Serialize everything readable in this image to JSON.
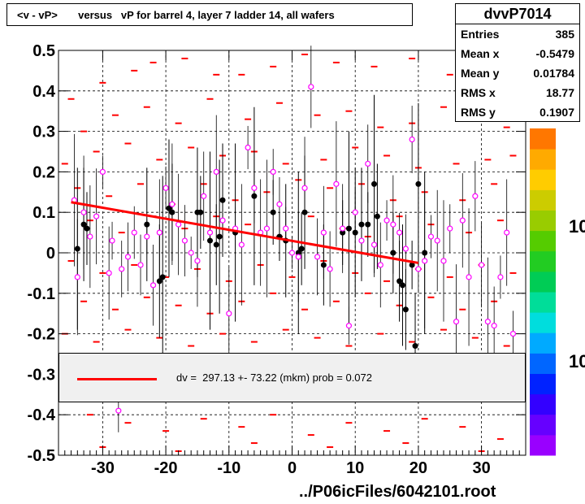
{
  "title": "<v - vP>       versus   vP for barrel 4, layer 7 ladder 14, all wafers",
  "stats": {
    "name": "dvvP7014",
    "rows": [
      {
        "label": "Entries",
        "value": "385"
      },
      {
        "label": "Mean x",
        "value": "-0.5479"
      },
      {
        "label": "Mean y",
        "value": "0.01784"
      },
      {
        "label": "RMS x",
        "value": "18.77"
      },
      {
        "label": "RMS y",
        "value": "0.1907"
      }
    ]
  },
  "legend": {
    "text": "dv =  297.13 +- 73.22 (mkm) prob = 0.072",
    "color": "#ff0000"
  },
  "footer": "../P06icFiles/6042101.root",
  "palette_labels": [
    "10",
    "10"
  ],
  "colors": {
    "profile": "#ff00ff",
    "fit": "#ff0000",
    "hist": "#ff0000",
    "points": "#000000"
  },
  "chart_data": {
    "type": "scatter",
    "xlim": [
      -37,
      37
    ],
    "ylim": [
      -0.5,
      0.5
    ],
    "xticks": [
      -30,
      -20,
      -10,
      0,
      10,
      20,
      30
    ],
    "xticklabels": [
      "-30",
      "-20",
      "-10",
      "0",
      "10",
      "20",
      "30"
    ],
    "yticks": [
      -0.5,
      -0.4,
      -0.3,
      -0.2,
      -0.1,
      0,
      0.1,
      0.2,
      0.3,
      0.4,
      0.5
    ],
    "yticklabels": [
      "-0.5",
      "-0.4",
      "-0.3",
      "-0.2",
      "-0.1",
      "0",
      "0.1",
      "0.2",
      "0.3",
      "0.4",
      "0.5"
    ],
    "grid": true,
    "fit_line": {
      "x": [
        -35,
        20
      ],
      "y": [
        0.125,
        -0.025
      ]
    },
    "profile_magenta": [
      [
        -34.5,
        0.13
      ],
      [
        -34,
        -0.06
      ],
      [
        -33,
        0.1
      ],
      [
        -32,
        0.04
      ],
      [
        -31,
        0.09
      ],
      [
        -30,
        0.2
      ],
      [
        -29,
        -0.05
      ],
      [
        -28.5,
        0.03
      ],
      [
        -27,
        -0.04
      ],
      [
        -26,
        -0.01
      ],
      [
        -25,
        0.05
      ],
      [
        -24,
        -0.03
      ],
      [
        -23,
        0.04
      ],
      [
        -22,
        -0.08
      ],
      [
        -21,
        0.05
      ],
      [
        -20,
        0.16
      ],
      [
        -19,
        0.12
      ],
      [
        -18,
        0.07
      ],
      [
        -17,
        0.03
      ],
      [
        -16,
        0.0
      ],
      [
        -15,
        -0.02
      ],
      [
        -14,
        0.14
      ],
      [
        -13,
        0.05
      ],
      [
        -12,
        0.2
      ],
      [
        -11,
        0.08
      ],
      [
        -10,
        -0.15
      ],
      [
        -9,
        0.06
      ],
      [
        -8,
        0.02
      ],
      [
        -7,
        0.26
      ],
      [
        -6,
        0.16
      ],
      [
        -5,
        0.05
      ],
      [
        -4,
        0.06
      ],
      [
        -3,
        0.2
      ],
      [
        -2,
        0.12
      ],
      [
        -1,
        0.06
      ],
      [
        0,
        0.0
      ],
      [
        1,
        -0.01
      ],
      [
        2,
        0.16
      ],
      [
        3,
        0.41
      ],
      [
        4,
        -0.01
      ],
      [
        5,
        0.05
      ],
      [
        6,
        -0.04
      ],
      [
        7,
        0.17
      ],
      [
        8,
        0.06
      ],
      [
        9,
        -0.18
      ],
      [
        10,
        0.1
      ],
      [
        11,
        0.03
      ],
      [
        12,
        0.22
      ],
      [
        13,
        0.02
      ],
      [
        14,
        -0.03
      ],
      [
        15,
        0.08
      ],
      [
        16,
        0.07
      ],
      [
        17,
        0.05
      ],
      [
        18,
        0.01
      ],
      [
        19,
        0.28
      ],
      [
        20,
        -0.04
      ],
      [
        21,
        -0.02
      ],
      [
        22,
        0.04
      ],
      [
        23,
        0.03
      ],
      [
        24,
        -0.02
      ],
      [
        25,
        0.06
      ],
      [
        26,
        -0.17
      ],
      [
        27,
        0.08
      ],
      [
        28,
        -0.06
      ],
      [
        29,
        0.14
      ],
      [
        30,
        -0.03
      ],
      [
        31,
        -0.17
      ],
      [
        32,
        -0.18
      ],
      [
        33,
        -0.06
      ],
      [
        34,
        0.05
      ],
      [
        35,
        -0.2
      ],
      [
        -27.5,
        -0.39
      ]
    ],
    "profile_black": [
      [
        -34,
        0.01
      ],
      [
        -33,
        0.07
      ],
      [
        -32.5,
        0.06
      ],
      [
        -23,
        0.07
      ],
      [
        -21,
        -0.07
      ],
      [
        -20.5,
        -0.06
      ],
      [
        -19.5,
        0.11
      ],
      [
        -19,
        0.1
      ],
      [
        -15,
        0.1
      ],
      [
        -14.5,
        0.1
      ],
      [
        -13,
        0.03
      ],
      [
        -12,
        0.02
      ],
      [
        -11.5,
        0.04
      ],
      [
        -11,
        0.13
      ],
      [
        -9,
        0.05
      ],
      [
        -6,
        0.14
      ],
      [
        -3,
        0.1
      ],
      [
        -2,
        0.04
      ],
      [
        -1,
        0.03
      ],
      [
        1,
        0.0
      ],
      [
        1.5,
        0.01
      ],
      [
        2,
        0.1
      ],
      [
        5,
        -0.03
      ],
      [
        8,
        0.05
      ],
      [
        9,
        0.06
      ],
      [
        10,
        0.05
      ],
      [
        11,
        0.07
      ],
      [
        12,
        0.07
      ],
      [
        13,
        0.17
      ],
      [
        13.5,
        0.09
      ],
      [
        16,
        0.0
      ],
      [
        17,
        -0.07
      ],
      [
        17.5,
        -0.08
      ],
      [
        18,
        -0.14
      ],
      [
        19,
        -0.03
      ],
      [
        19.5,
        -0.23
      ],
      [
        20,
        0.17
      ],
      [
        21,
        0.0
      ]
    ],
    "hist_dashes": [
      [
        -35,
        0.38
      ],
      [
        -30,
        0.42
      ],
      [
        -25,
        0.45
      ],
      [
        -22,
        0.47
      ],
      [
        -17,
        0.48
      ],
      [
        -12,
        0.44
      ],
      [
        -8,
        0.44
      ],
      [
        -3,
        0.46
      ],
      [
        2,
        0.49
      ],
      [
        7,
        0.47
      ],
      [
        13,
        0.46
      ],
      [
        19,
        0.48
      ],
      [
        25,
        0.44
      ],
      [
        30,
        0.47
      ],
      [
        33,
        0.43
      ],
      [
        -33,
        0.3
      ],
      [
        -28,
        0.34
      ],
      [
        -23,
        0.36
      ],
      [
        -18,
        0.32
      ],
      [
        -13,
        0.38
      ],
      [
        -7,
        0.33
      ],
      [
        -2,
        0.37
      ],
      [
        4,
        0.34
      ],
      [
        9,
        0.35
      ],
      [
        14,
        0.31
      ],
      [
        19,
        0.32
      ],
      [
        24,
        0.36
      ],
      [
        29,
        0.34
      ],
      [
        34,
        0.31
      ],
      [
        -36,
        0.22
      ],
      [
        -31,
        0.25
      ],
      [
        -26,
        0.27
      ],
      [
        -21,
        0.23
      ],
      [
        -16,
        0.26
      ],
      [
        -11,
        0.24
      ],
      [
        -6,
        0.25
      ],
      [
        -1,
        0.22
      ],
      [
        5,
        0.23
      ],
      [
        10,
        0.26
      ],
      [
        15,
        0.24
      ],
      [
        20,
        0.21
      ],
      [
        26,
        0.22
      ],
      [
        31,
        0.23
      ],
      [
        35,
        0.24
      ],
      [
        -34,
        0.16
      ],
      [
        -29,
        0.14
      ],
      [
        -24,
        0.17
      ],
      [
        -19,
        0.12
      ],
      [
        -14,
        0.17
      ],
      [
        -9,
        0.13
      ],
      [
        -4,
        0.15
      ],
      [
        1,
        0.18
      ],
      [
        6,
        0.16
      ],
      [
        11,
        0.17
      ],
      [
        16,
        0.13
      ],
      [
        21,
        0.15
      ],
      [
        27,
        0.13
      ],
      [
        32,
        0.17
      ],
      [
        -32,
        0.08
      ],
      [
        -27,
        0.05
      ],
      [
        -22,
        0.09
      ],
      [
        -17,
        0.06
      ],
      [
        -12,
        0.09
      ],
      [
        -7,
        0.07
      ],
      [
        -2,
        0.04
      ],
      [
        3,
        0.09
      ],
      [
        8,
        0.06
      ],
      [
        12,
        0.04
      ],
      [
        17,
        0.09
      ],
      [
        22,
        0.07
      ],
      [
        28,
        0.05
      ],
      [
        33,
        0.08
      ],
      [
        -35,
        -0.02
      ],
      [
        -30,
        -0.05
      ],
      [
        -25,
        -0.03
      ],
      [
        -20,
        -0.06
      ],
      [
        -15,
        -0.04
      ],
      [
        -10,
        -0.07
      ],
      [
        -5,
        -0.03
      ],
      [
        0,
        -0.06
      ],
      [
        5,
        -0.02
      ],
      [
        10,
        -0.05
      ],
      [
        15,
        -0.07
      ],
      [
        20,
        -0.04
      ],
      [
        25,
        -0.06
      ],
      [
        30,
        -0.03
      ],
      [
        35,
        -0.05
      ],
      [
        -33,
        -0.12
      ],
      [
        -28,
        -0.14
      ],
      [
        -23,
        -0.11
      ],
      [
        -18,
        -0.13
      ],
      [
        -13,
        -0.15
      ],
      [
        -8,
        -0.12
      ],
      [
        -3,
        -0.1
      ],
      [
        2,
        -0.14
      ],
      [
        7,
        -0.12
      ],
      [
        12,
        -0.1
      ],
      [
        17,
        -0.13
      ],
      [
        22,
        -0.11
      ],
      [
        27,
        -0.14
      ],
      [
        32,
        -0.12
      ],
      [
        -36,
        -0.2
      ],
      [
        -31,
        -0.22
      ],
      [
        -26,
        -0.19
      ],
      [
        -21,
        -0.21
      ],
      [
        -16,
        -0.23
      ],
      [
        -11,
        -0.2
      ],
      [
        -6,
        -0.22
      ],
      [
        -1,
        -0.19
      ],
      [
        4,
        -0.21
      ],
      [
        9,
        -0.23
      ],
      [
        14,
        -0.2
      ],
      [
        19,
        -0.22
      ],
      [
        24,
        -0.19
      ],
      [
        29,
        -0.21
      ],
      [
        34,
        -0.23
      ],
      [
        -32,
        -0.4
      ],
      [
        -26,
        -0.42
      ],
      [
        -20,
        -0.44
      ],
      [
        -14,
        -0.41
      ],
      [
        -8,
        -0.43
      ],
      [
        -3,
        -0.4
      ],
      [
        3,
        -0.45
      ],
      [
        9,
        -0.42
      ],
      [
        15,
        -0.44
      ],
      [
        21,
        -0.41
      ],
      [
        27,
        -0.43
      ],
      [
        33,
        -0.46
      ],
      [
        -30,
        -0.48
      ],
      [
        -18,
        -0.49
      ],
      [
        -6,
        -0.47
      ],
      [
        6,
        -0.48
      ],
      [
        18,
        -0.47
      ],
      [
        30,
        -0.49
      ]
    ]
  }
}
